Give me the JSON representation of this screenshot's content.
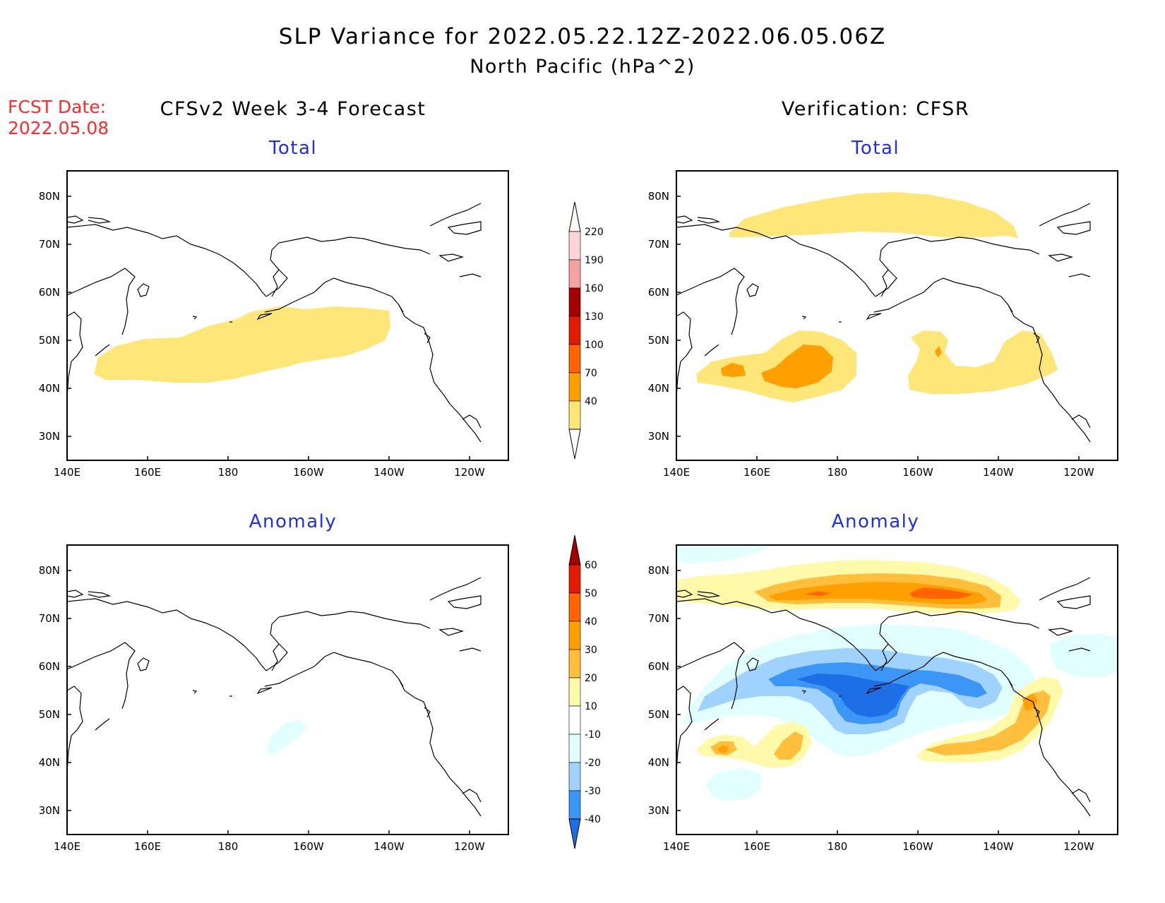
{
  "header": {
    "title": "SLP Variance for 2022.05.22.12Z-2022.06.05.06Z",
    "subtitle": "North Pacific (hPa^2)",
    "fcst_label": "FCST Date:",
    "fcst_date": "2022.05.08",
    "left_heading": "CFSv2 Week 3-4 Forecast",
    "right_heading": "Verification: CFSR"
  },
  "axes": {
    "lon_labels": [
      "140E",
      "160E",
      "180",
      "160W",
      "140W",
      "120W"
    ],
    "lat_labels": [
      "80N",
      "70N",
      "60N",
      "50N",
      "40N",
      "30N"
    ]
  },
  "panels": {
    "fc_total_title": "Total",
    "ver_total_title": "Total",
    "fc_anom_title": "Anomaly",
    "ver_anom_title": "Anomaly"
  },
  "colorbars": {
    "total": {
      "labels": [
        "220",
        "190",
        "160",
        "130",
        "100",
        "70",
        "40"
      ],
      "colors": [
        "#fcd4d4",
        "#f4a2a2",
        "#a50000",
        "#e11a00",
        "#ff6400",
        "#ffa000",
        "#ffe678"
      ]
    },
    "anomaly": {
      "labels": [
        "60",
        "50",
        "40",
        "30",
        "20",
        "10",
        "-10",
        "-20",
        "-30",
        "-40"
      ],
      "colors": [
        "#a50000",
        "#e11a00",
        "#ff6400",
        "#ffa000",
        "#ffbe3c",
        "#fffaaa",
        "#ffffff",
        "#e1ffff",
        "#a0d2ff",
        "#3c96f5",
        "#1e6ee6"
      ]
    }
  }
}
